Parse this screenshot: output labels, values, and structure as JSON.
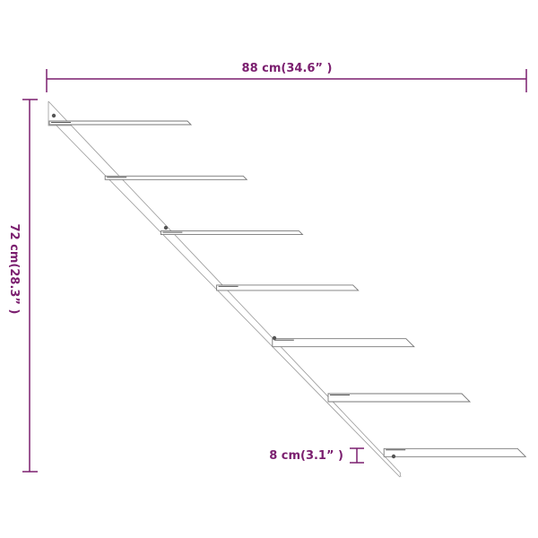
{
  "colors": {
    "dimension": "#7b1f6f",
    "line_art": "#8a8a8a"
  },
  "dimensions": {
    "width": "88 cm(34.6” )",
    "height": "72 cm(28.3” )",
    "shelf_spacing": "8 cm(3.1” )"
  },
  "shelf_count": 7
}
